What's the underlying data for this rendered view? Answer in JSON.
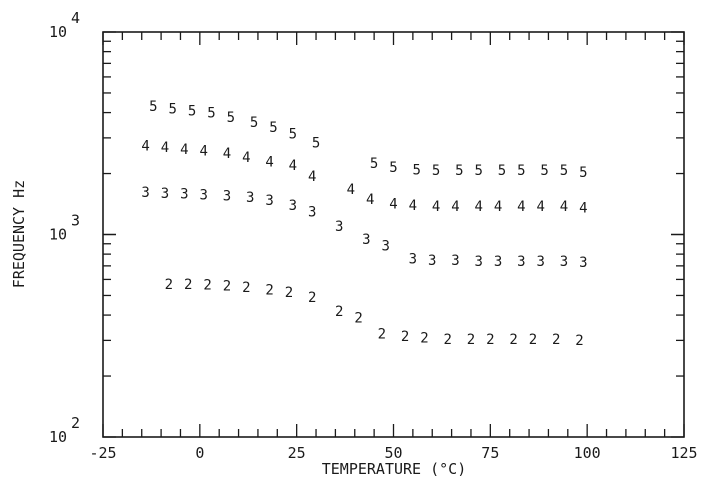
{
  "chart_data": {
    "type": "scatter",
    "xlabel": "TEMPERATURE  (°C)",
    "ylabel": "FREQUENCY Hz",
    "xlim": [
      -25,
      125
    ],
    "ylim": [
      100,
      10000
    ],
    "y_scale": "log",
    "x_ticks": [
      "-25",
      "0",
      "25",
      "50",
      "75",
      "100",
      "125"
    ],
    "y_ticks": [
      {
        "base": "10",
        "exp": "2"
      },
      {
        "base": "10",
        "exp": "3"
      },
      {
        "base": "10",
        "exp": "4"
      }
    ],
    "grid": false,
    "marker_series": [
      {
        "marker": "5",
        "points": [
          [
            -12,
            4300
          ],
          [
            -7,
            4200
          ],
          [
            -2,
            4100
          ],
          [
            3,
            4000
          ],
          [
            8,
            3800
          ],
          [
            14,
            3600
          ],
          [
            19,
            3400
          ],
          [
            24,
            3150
          ],
          [
            30,
            2850
          ],
          [
            45,
            2250
          ],
          [
            50,
            2150
          ],
          [
            56,
            2100
          ],
          [
            61,
            2080
          ],
          [
            67,
            2080
          ],
          [
            72,
            2080
          ],
          [
            78,
            2080
          ],
          [
            83,
            2080
          ],
          [
            89,
            2080
          ],
          [
            94,
            2080
          ],
          [
            99,
            2040
          ]
        ]
      },
      {
        "marker": "4",
        "points": [
          [
            -14,
            2750
          ],
          [
            -9,
            2700
          ],
          [
            -4,
            2650
          ],
          [
            1,
            2600
          ],
          [
            7,
            2520
          ],
          [
            12,
            2420
          ],
          [
            18,
            2300
          ],
          [
            24,
            2200
          ],
          [
            29,
            1950
          ],
          [
            39,
            1680
          ],
          [
            44,
            1500
          ],
          [
            50,
            1420
          ],
          [
            55,
            1400
          ],
          [
            61,
            1380
          ],
          [
            66,
            1380
          ],
          [
            72,
            1380
          ],
          [
            77,
            1380
          ],
          [
            83,
            1380
          ],
          [
            88,
            1380
          ],
          [
            94,
            1380
          ],
          [
            99,
            1360
          ]
        ]
      },
      {
        "marker": "3",
        "points": [
          [
            -14,
            1620
          ],
          [
            -9,
            1600
          ],
          [
            -4,
            1590
          ],
          [
            1,
            1580
          ],
          [
            7,
            1560
          ],
          [
            13,
            1530
          ],
          [
            18,
            1480
          ],
          [
            24,
            1400
          ],
          [
            29,
            1300
          ],
          [
            36,
            1100
          ],
          [
            43,
            950
          ],
          [
            48,
            880
          ],
          [
            55,
            760
          ],
          [
            60,
            750
          ],
          [
            66,
            750
          ],
          [
            72,
            740
          ],
          [
            77,
            740
          ],
          [
            83,
            740
          ],
          [
            88,
            740
          ],
          [
            94,
            740
          ],
          [
            99,
            730
          ]
        ]
      },
      {
        "marker": "2",
        "points": [
          [
            -8,
            570
          ],
          [
            -3,
            570
          ],
          [
            2,
            565
          ],
          [
            7,
            560
          ],
          [
            12,
            550
          ],
          [
            18,
            535
          ],
          [
            23,
            520
          ],
          [
            29,
            490
          ],
          [
            36,
            420
          ],
          [
            41,
            390
          ],
          [
            47,
            325
          ],
          [
            53,
            315
          ],
          [
            58,
            310
          ],
          [
            64,
            305
          ],
          [
            70,
            305
          ],
          [
            75,
            305
          ],
          [
            81,
            305
          ],
          [
            86,
            305
          ],
          [
            92,
            305
          ],
          [
            98,
            302
          ]
        ]
      }
    ]
  }
}
